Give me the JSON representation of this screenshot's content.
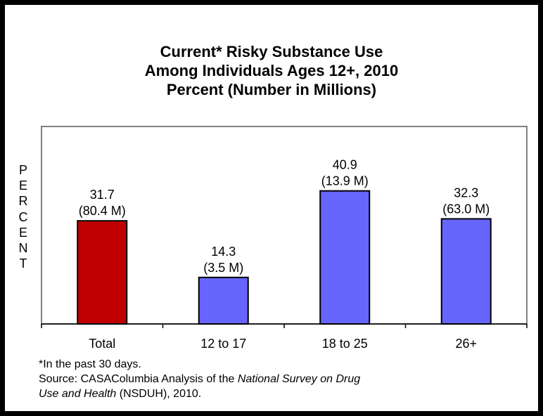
{
  "chart_data": {
    "type": "bar",
    "title": [
      "Current* Risky Substance Use",
      "Among Individuals Ages 12+, 2010",
      "Percent (Number in Millions)"
    ],
    "ylabel": "PERCENT",
    "xlabel": "",
    "categories": [
      "Total",
      "12 to 17",
      "18 to 25",
      "26+"
    ],
    "values": [
      31.7,
      14.3,
      40.9,
      32.3
    ],
    "value_labels": [
      "31.7",
      "14.3",
      "40.9",
      "32.3"
    ],
    "count_labels": [
      "(80.4 M)",
      "(3.5 M)",
      "(13.9 M)",
      "(63.0 M)"
    ],
    "bar_colors": [
      "#c00000",
      "#6666ff",
      "#6666ff",
      "#6666ff"
    ],
    "ylim": [
      0,
      55
    ],
    "grid": false,
    "legend": "none"
  },
  "footnote": {
    "line1": "*In the past 30 days.",
    "source_prefix": "Source: CASAColumbia Analysis of the ",
    "source_italic_1": "National Survey on Drug",
    "source_italic_2": "Use and Health",
    "source_suffix": " (NSDUH), 2010."
  }
}
